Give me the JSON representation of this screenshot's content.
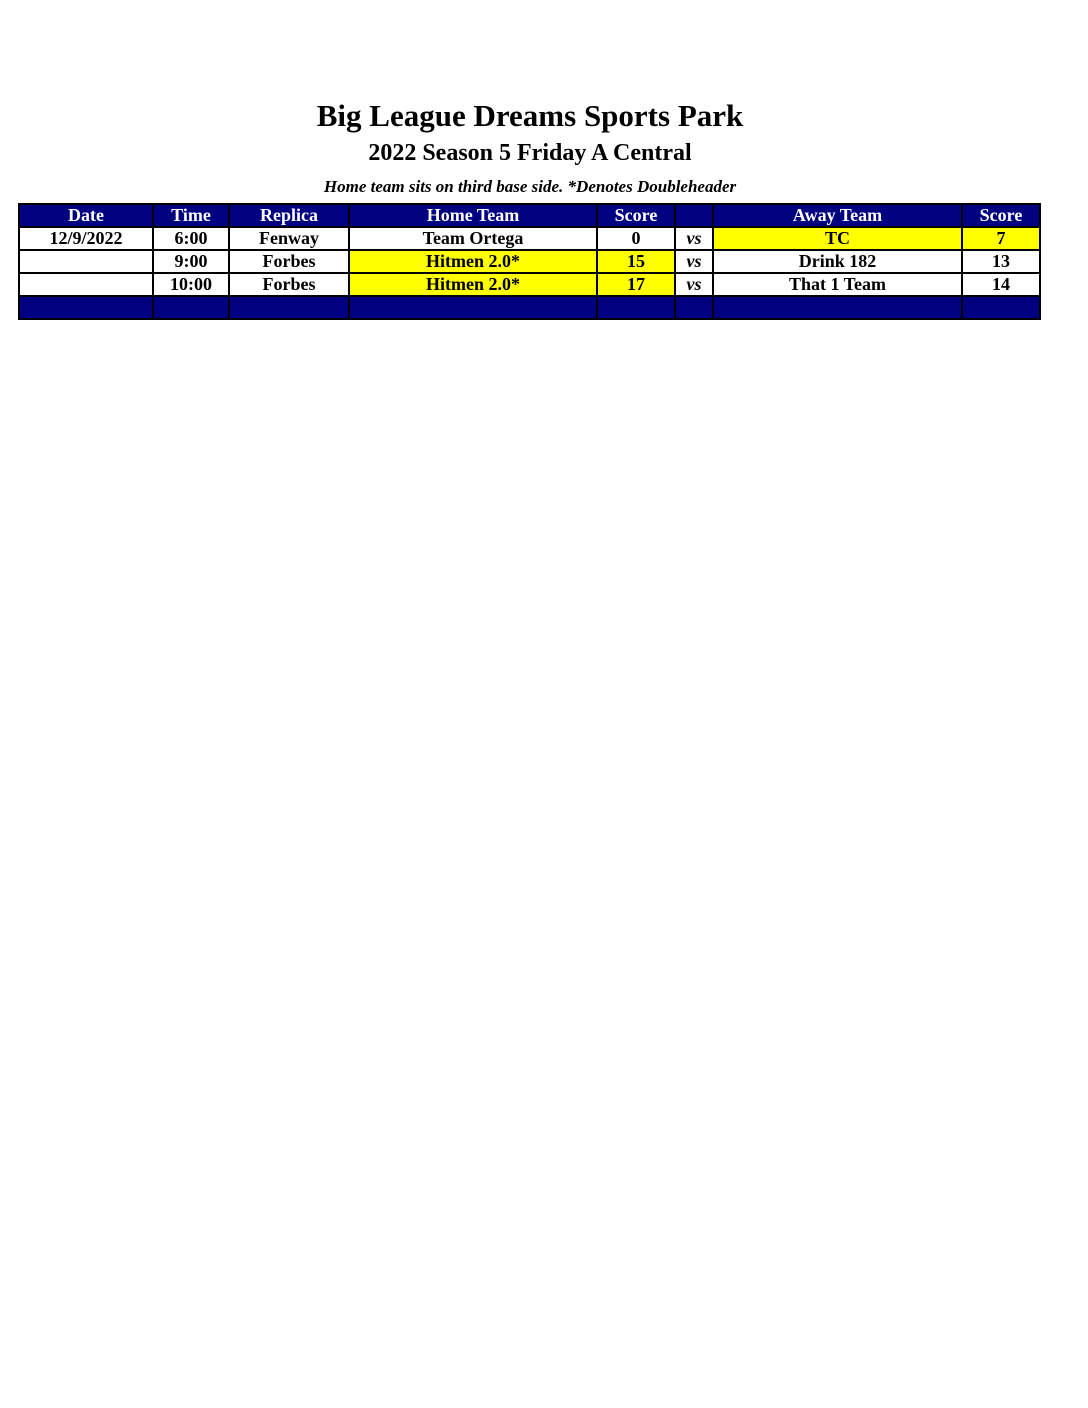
{
  "title": "Big League Dreams Sports Park",
  "subtitle": "2022 Season 5 Friday A Central",
  "note": "Home team sits on third base side.  *Denotes Doubleheader",
  "colors": {
    "header": "#000080",
    "winner": "#ffff00"
  },
  "table": {
    "headers": [
      "Date",
      "Time",
      "Replica",
      "Home Team",
      "Score",
      "",
      "Away Team",
      "Score"
    ],
    "rows": [
      {
        "date": "12/9/2022",
        "time": "6:00",
        "replica": "Fenway",
        "home": "Team Ortega",
        "home_score": "0",
        "vs": "vs",
        "away": "TC",
        "away_score": "7",
        "winner": "away"
      },
      {
        "date": "",
        "time": "9:00",
        "replica": "Forbes",
        "home": "Hitmen 2.0*",
        "home_score": "15",
        "vs": "vs",
        "away": "Drink 182",
        "away_score": "13",
        "winner": "home"
      },
      {
        "date": "",
        "time": "10:00",
        "replica": "Forbes",
        "home": "Hitmen 2.0*",
        "home_score": "17",
        "vs": "vs",
        "away": "That 1 Team",
        "away_score": "14",
        "winner": "home"
      }
    ]
  }
}
